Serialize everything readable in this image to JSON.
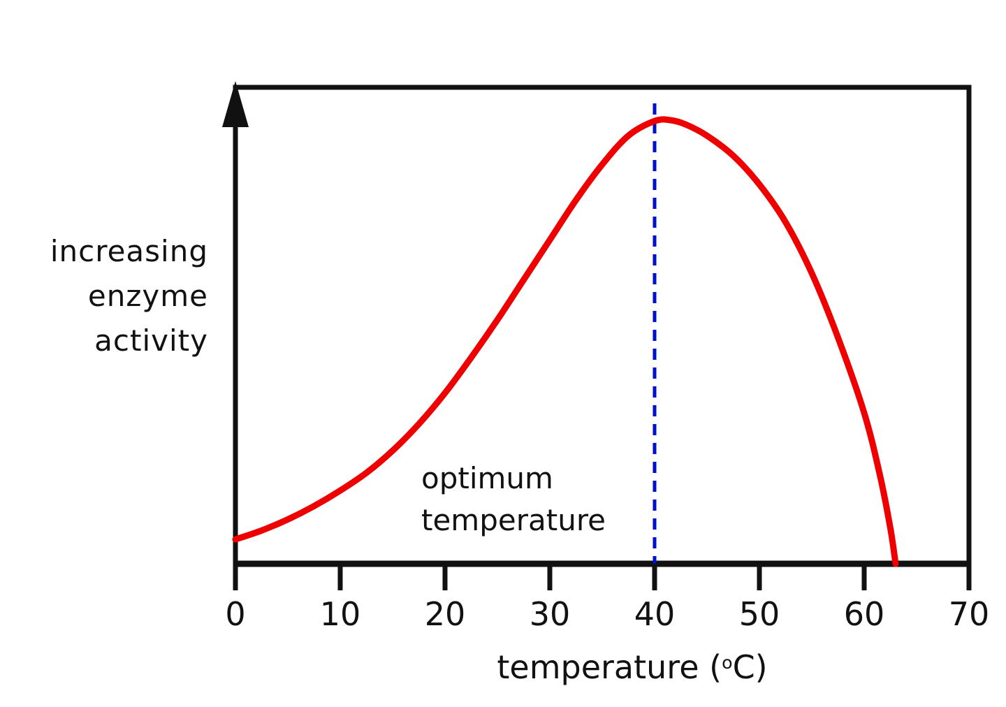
{
  "chart_data": {
    "type": "line",
    "title": "",
    "xlabel": "temperature (°C)",
    "xlabel_prefix": "temperature (",
    "xlabel_sup": "o",
    "xlabel_suffix": "C)",
    "ylabel": "increasing enzyme activity",
    "ylabel_lines": [
      "increasing",
      "enzyme",
      "activity"
    ],
    "x_ticks": [
      0,
      10,
      20,
      30,
      40,
      50,
      60,
      70
    ],
    "x_tick_labels": [
      "0",
      "10",
      "20",
      "30",
      "40",
      "50",
      "60",
      "70"
    ],
    "xlim": [
      0,
      70
    ],
    "ylim": [
      0,
      1.1
    ],
    "grid": false,
    "legend": "none",
    "series": [
      {
        "name": "enzyme activity",
        "color": "#ee0000",
        "x": [
          0,
          2.5,
          5,
          7.5,
          10,
          12.5,
          15,
          17.5,
          20,
          22.5,
          25,
          27.5,
          30,
          32.5,
          35,
          37.5,
          40,
          41.5,
          43,
          45,
          47.5,
          50,
          52.5,
          55,
          57.5,
          60,
          61.5,
          62.5,
          63
        ],
        "y": [
          0.055,
          0.075,
          0.1,
          0.13,
          0.165,
          0.205,
          0.255,
          0.315,
          0.385,
          0.465,
          0.55,
          0.64,
          0.73,
          0.82,
          0.9,
          0.965,
          0.998,
          1.0,
          0.99,
          0.965,
          0.92,
          0.855,
          0.77,
          0.655,
          0.51,
          0.34,
          0.2,
          0.08,
          0.0
        ]
      }
    ],
    "reference_line": {
      "x": 40,
      "color": "#0011cc",
      "style": "dashed",
      "meaning": "optimum temperature"
    },
    "annotation": {
      "lines": [
        "optimum",
        "temperature"
      ],
      "x": 22,
      "y": 0.17
    },
    "axis_color": "#111111"
  }
}
